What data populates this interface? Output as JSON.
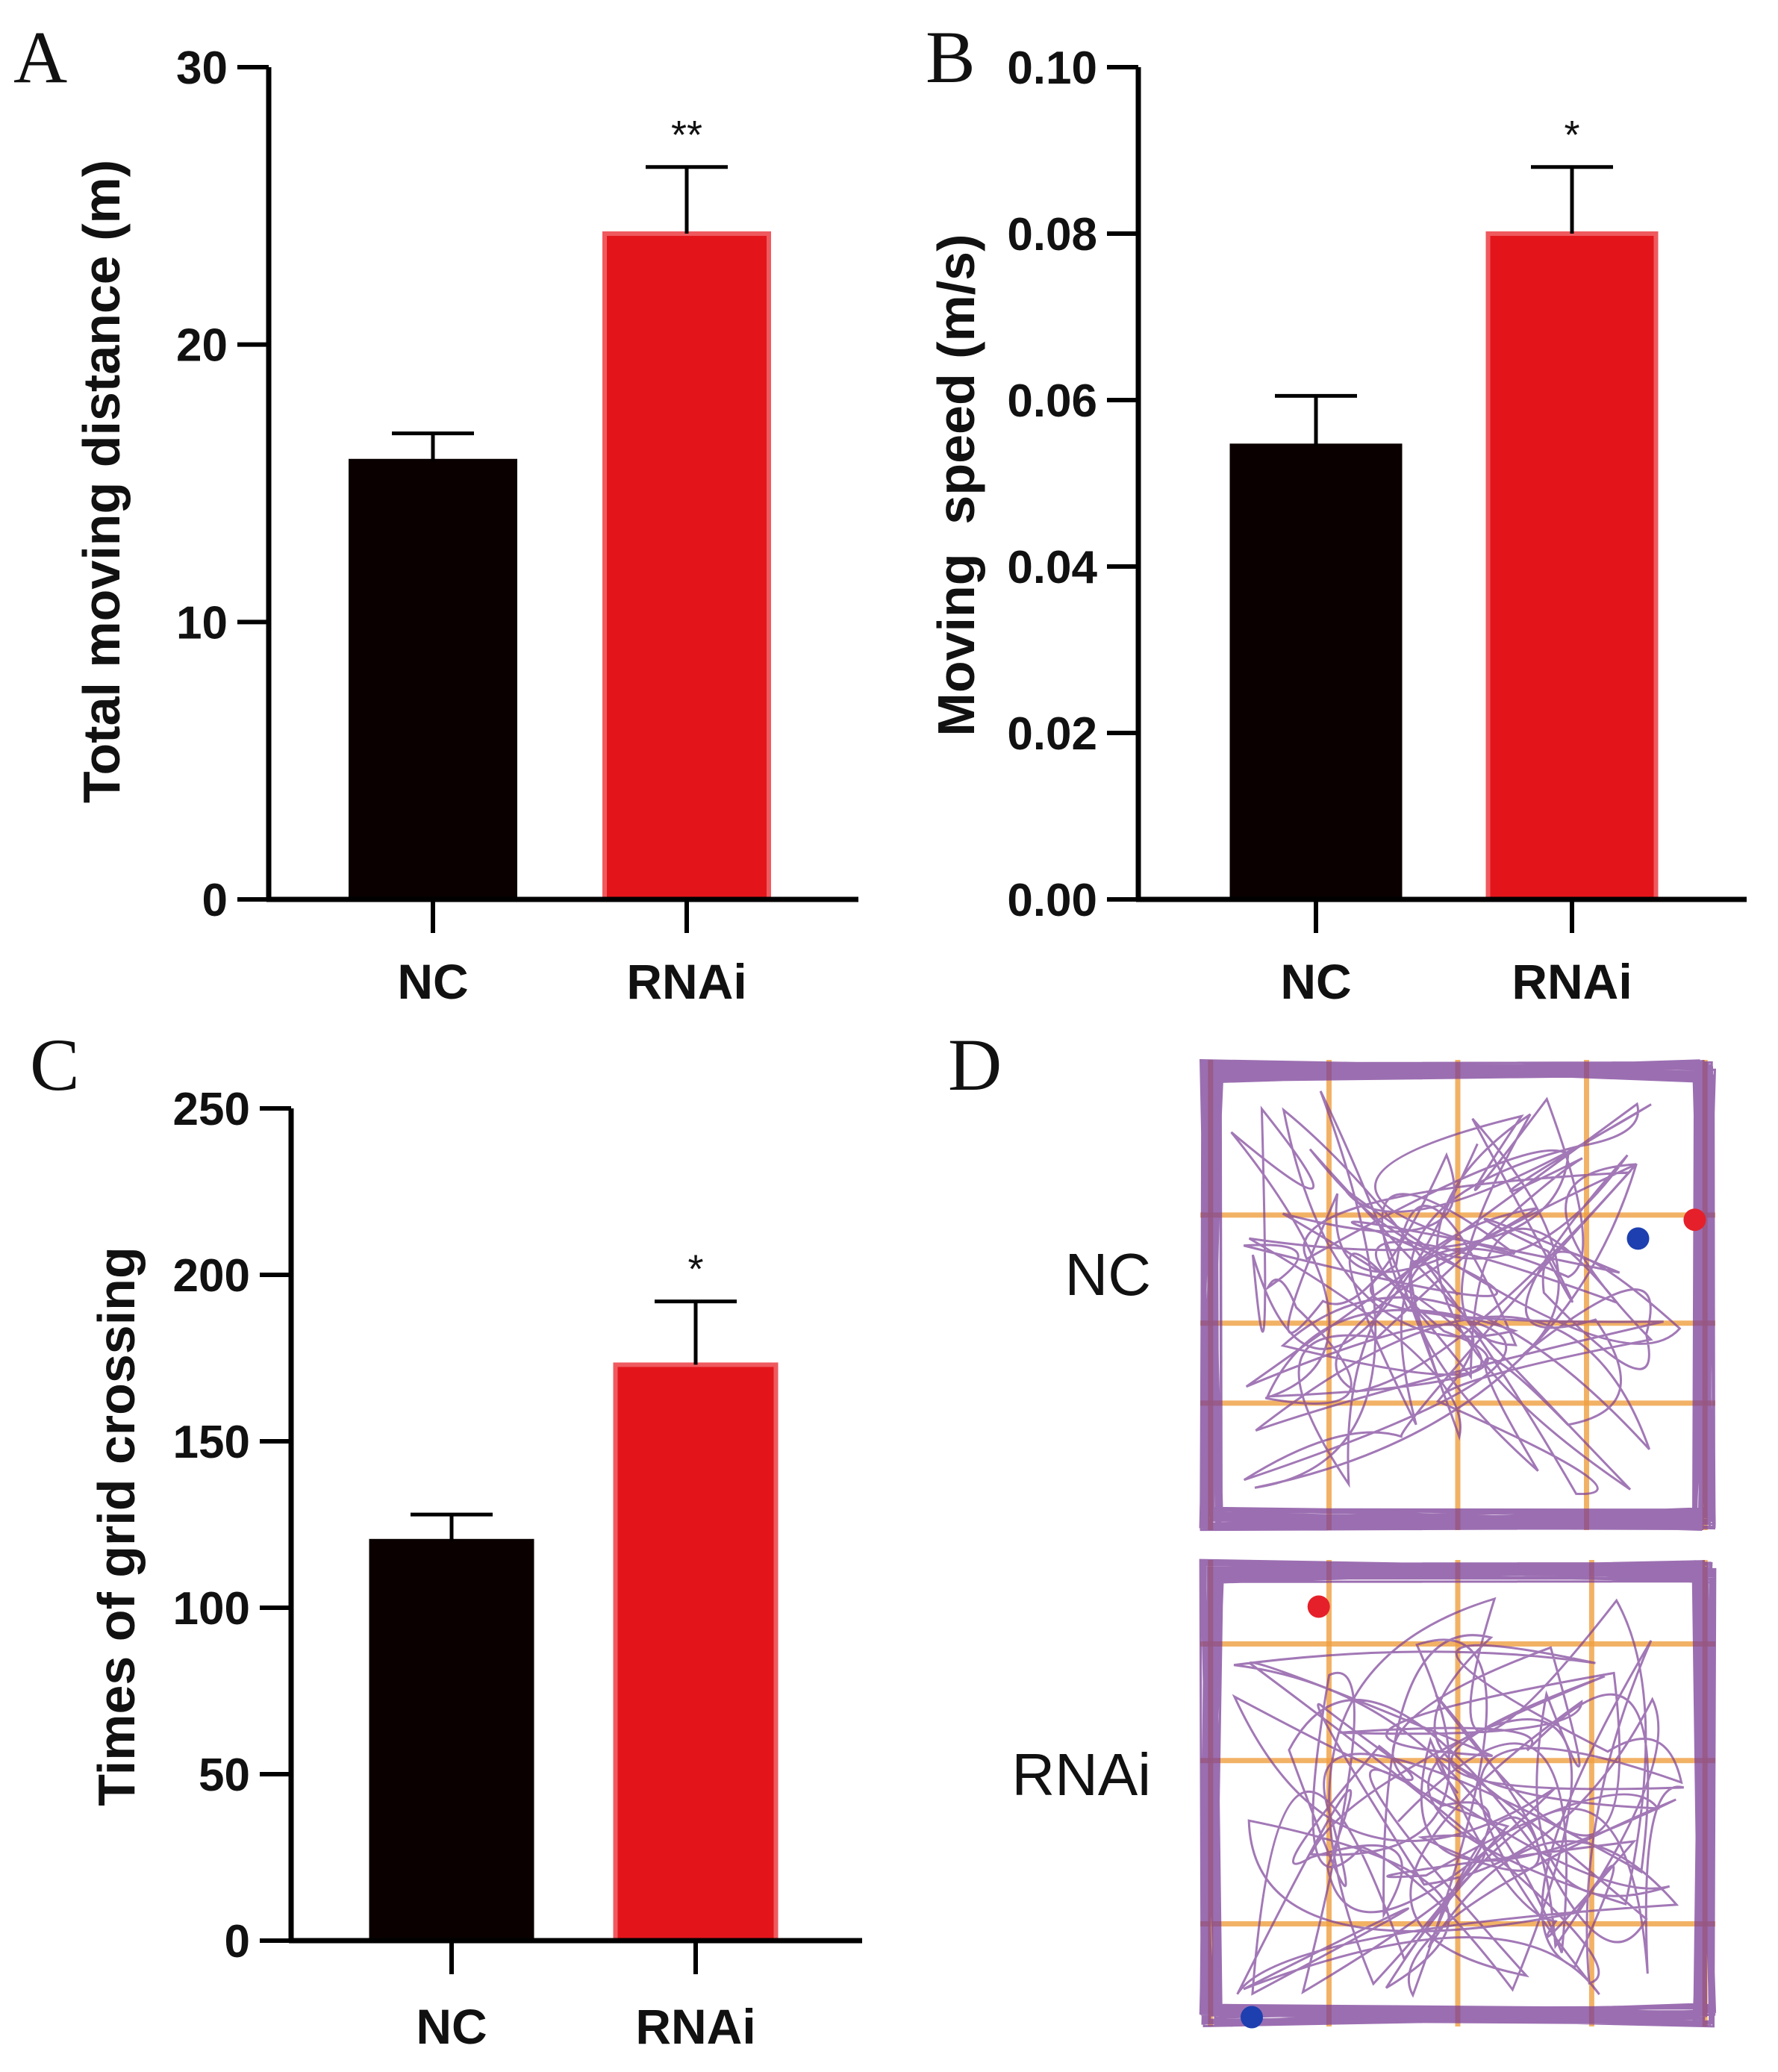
{
  "panels": {
    "A": {
      "letter": "A"
    },
    "B": {
      "letter": "B"
    },
    "C": {
      "letter": "C"
    },
    "D": {
      "letter": "D",
      "track_labels": [
        "NC",
        "RNAi"
      ]
    }
  },
  "colors": {
    "NC": "#0a0000",
    "RNAi": "#e3151b",
    "axis": "#000000",
    "track": "#7a3e97",
    "grid": "#f0a040"
  },
  "chart_data": [
    {
      "id": "A",
      "type": "bar",
      "categories": [
        "NC",
        "RNAi"
      ],
      "values": [
        15.8,
        24.0
      ],
      "errors": [
        1.0,
        2.4
      ],
      "significance": [
        "",
        "**"
      ],
      "ylabel": "Total moving distance (m)",
      "ylim": [
        0,
        30
      ],
      "yticks": [
        0,
        10,
        20,
        30
      ],
      "ytick_labels": [
        "0",
        "10",
        "20",
        "30"
      ]
    },
    {
      "id": "B",
      "type": "bar",
      "categories": [
        "NC",
        "RNAi"
      ],
      "values": [
        0.0545,
        0.08
      ],
      "errors": [
        0.006,
        0.008
      ],
      "significance": [
        "",
        "*"
      ],
      "ylabel": "Moving  speed (m/s)",
      "ylim": [
        0,
        0.1
      ],
      "yticks": [
        0,
        0.02,
        0.04,
        0.06,
        0.08,
        0.1
      ],
      "ytick_labels": [
        "0.00",
        "0.02",
        "0.04",
        "0.06",
        "0.08",
        "0.10"
      ]
    },
    {
      "id": "C",
      "type": "bar",
      "categories": [
        "NC",
        "RNAi"
      ],
      "values": [
        120,
        173
      ],
      "errors": [
        8,
        19
      ],
      "significance": [
        "",
        "*"
      ],
      "ylabel": "Times of grid crossing",
      "ylim": [
        0,
        250
      ],
      "yticks": [
        0,
        50,
        100,
        150,
        200,
        250
      ],
      "ytick_labels": [
        "0",
        "50",
        "100",
        "150",
        "200",
        "250"
      ]
    }
  ]
}
